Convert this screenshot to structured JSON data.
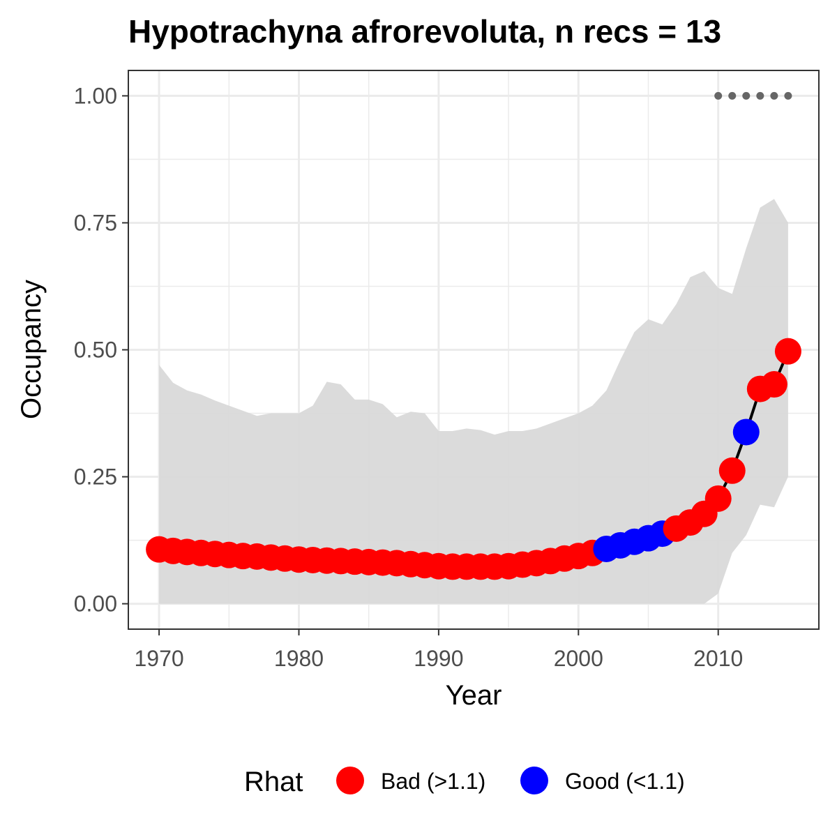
{
  "chart_data": {
    "type": "line",
    "title": "Hypotrachyna afrorevoluta, n recs = 13",
    "xlabel": "Year",
    "ylabel": "Occupancy",
    "xlim": [
      1967.8,
      2017.2
    ],
    "ylim": [
      -0.05,
      1.05
    ],
    "x_ticks": [
      1970,
      1980,
      1990,
      2000,
      2010
    ],
    "x_tick_labels": [
      "1970",
      "1980",
      "1990",
      "2000",
      "2010"
    ],
    "y_ticks": [
      0,
      0.25,
      0.5,
      0.75,
      1.0
    ],
    "y_tick_labels": [
      "0.00",
      "0.25",
      "0.50",
      "0.75",
      "1.00"
    ],
    "grid": true,
    "legend": {
      "title": "Rhat",
      "position": "bottom",
      "entries": [
        {
          "label": "Bad (>1.1)",
          "color": "#ff0000"
        },
        {
          "label": "Good (<1.1)",
          "color": "#0000ff"
        }
      ]
    },
    "colors": {
      "bad": "#ff0000",
      "good": "#0000ff",
      "ribbon": "#d9d9d9",
      "line": "#000000",
      "records": "#666666"
    },
    "series": [
      {
        "x": [
          1970,
          1971,
          1972,
          1973,
          1974,
          1975,
          1976,
          1977,
          1978,
          1979,
          1980,
          1981,
          1982,
          1983,
          1984,
          1985,
          1986,
          1987,
          1988,
          1989,
          1990,
          1991,
          1992,
          1993,
          1994,
          1995,
          1996,
          1997,
          1998,
          1999,
          2000,
          2001,
          2002,
          2003,
          2004,
          2005,
          2006,
          2007,
          2008,
          2009,
          2010,
          2011,
          2012,
          2013,
          2014,
          2015
        ],
        "y": [
          0.107,
          0.104,
          0.102,
          0.1,
          0.098,
          0.096,
          0.094,
          0.093,
          0.091,
          0.089,
          0.087,
          0.086,
          0.085,
          0.084,
          0.083,
          0.082,
          0.081,
          0.08,
          0.078,
          0.076,
          0.074,
          0.073,
          0.073,
          0.073,
          0.073,
          0.074,
          0.077,
          0.08,
          0.084,
          0.089,
          0.094,
          0.1,
          0.108,
          0.115,
          0.122,
          0.129,
          0.138,
          0.148,
          0.16,
          0.177,
          0.207,
          0.262,
          0.338,
          0.423,
          0.432,
          0.497
        ],
        "rhat": [
          "Bad",
          "Bad",
          "Bad",
          "Bad",
          "Bad",
          "Bad",
          "Bad",
          "Bad",
          "Bad",
          "Bad",
          "Bad",
          "Bad",
          "Bad",
          "Bad",
          "Bad",
          "Bad",
          "Bad",
          "Bad",
          "Bad",
          "Bad",
          "Bad",
          "Bad",
          "Bad",
          "Bad",
          "Bad",
          "Bad",
          "Bad",
          "Bad",
          "Bad",
          "Bad",
          "Bad",
          "Bad",
          "Good",
          "Good",
          "Good",
          "Good",
          "Good",
          "Bad",
          "Bad",
          "Bad",
          "Bad",
          "Bad",
          "Good",
          "Bad",
          "Bad",
          "Bad"
        ],
        "lower": [
          0,
          0,
          0,
          0,
          0,
          0,
          0,
          0,
          0,
          0,
          0,
          0,
          0,
          0,
          0,
          0,
          0,
          0,
          0,
          0,
          0,
          0,
          0,
          0,
          0,
          0,
          0,
          0,
          0,
          0,
          0,
          0,
          0,
          0,
          0,
          0,
          0,
          0,
          0,
          0,
          0.02,
          0.1,
          0.135,
          0.195,
          0.19,
          0.25
        ],
        "upper": [
          0.47,
          0.435,
          0.42,
          0.412,
          0.4,
          0.39,
          0.38,
          0.37,
          0.375,
          0.375,
          0.375,
          0.39,
          0.437,
          0.432,
          0.402,
          0.402,
          0.393,
          0.367,
          0.378,
          0.375,
          0.34,
          0.34,
          0.345,
          0.342,
          0.333,
          0.34,
          0.34,
          0.345,
          0.355,
          0.365,
          0.375,
          0.39,
          0.42,
          0.48,
          0.535,
          0.56,
          0.55,
          0.59,
          0.643,
          0.655,
          0.622,
          0.61,
          0.7,
          0.78,
          0.797,
          0.75
        ]
      }
    ],
    "records": {
      "x": [
        2010,
        2011,
        2012,
        2013,
        2014,
        2015
      ],
      "y": [
        1,
        1,
        1,
        1,
        1,
        1
      ]
    }
  }
}
